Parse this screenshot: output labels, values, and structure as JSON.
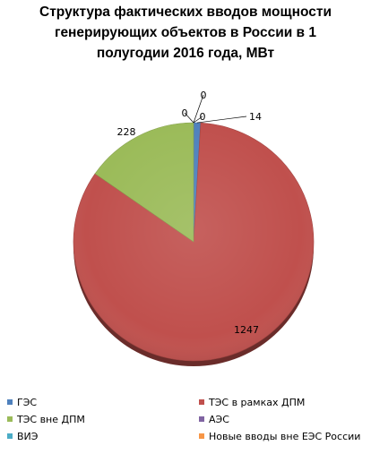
{
  "chart_data": {
    "type": "pie",
    "title_lines": [
      "Структура фактических вводов мощности",
      "генерирующих объектов в  России в  1",
      "полугодии 2016  года, МВт"
    ],
    "slices": [
      {
        "name": "ГЭС",
        "value": 14,
        "label": "14",
        "color": "#4f81bd"
      },
      {
        "name": "ТЭС в рамках ДПМ",
        "value": 1247,
        "label": "1247",
        "color": "#c0504d"
      },
      {
        "name": "ТЭС вне ДПМ",
        "value": 228,
        "label": "228",
        "color": "#9bbb59"
      },
      {
        "name": "АЭС",
        "value": 0,
        "label": "0",
        "color": "#8064a2"
      },
      {
        "name": "ВИЭ",
        "value": 0,
        "label": "0",
        "color": "#4bacc6"
      },
      {
        "name": "Новые вводы вне ЕЭС России",
        "value": 0,
        "label": "0",
        "color": "#f79646"
      }
    ],
    "legend_placement": "bottom"
  }
}
